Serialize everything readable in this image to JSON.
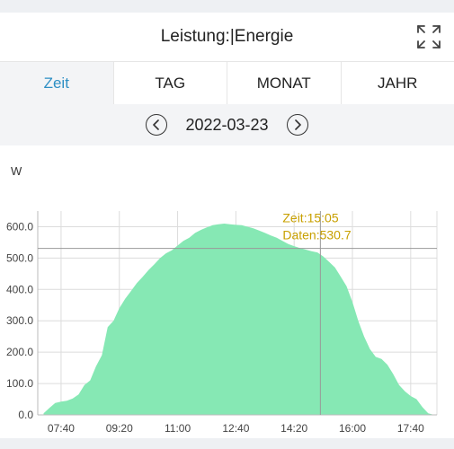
{
  "header": {
    "title": "Leistung:|Energie",
    "expand_icon": "expand-icon"
  },
  "tabs": [
    {
      "label": "Zeit",
      "active": true
    },
    {
      "label": "TAG",
      "active": false
    },
    {
      "label": "MONAT",
      "active": false
    },
    {
      "label": "JAHR",
      "active": false
    }
  ],
  "datebar": {
    "date": "2022-03-23",
    "prev_icon": "chevron-left-icon",
    "next_icon": "chevron-right-icon"
  },
  "colors": {
    "accent": "#2e8fc4",
    "area": "#86e8b4",
    "tooltip": "#c8a000"
  },
  "chart_data": {
    "type": "area",
    "unit_label": "W",
    "ylim": [
      0,
      650
    ],
    "yticks": [
      "0.0",
      "100.0",
      "200.0",
      "300.0",
      "400.0",
      "500.0",
      "600.0"
    ],
    "ytick_values": [
      0,
      100,
      200,
      300,
      400,
      500,
      600
    ],
    "xlim": [
      "07:00",
      "18:25"
    ],
    "xticks": [
      "07:40",
      "09:20",
      "11:00",
      "12:40",
      "14:20",
      "16:00",
      "17:40"
    ],
    "grid": true,
    "tooltip": {
      "time_label": "Zeit:15:05",
      "value_label": "Daten:530.7",
      "x": "15:05",
      "y": 530.7
    },
    "series": [
      {
        "x": [
          "07:10",
          "07:20",
          "07:30",
          "07:40",
          "07:50",
          "08:00",
          "08:10",
          "08:20",
          "08:30",
          "08:40",
          "08:50",
          "09:00",
          "09:10",
          "09:20",
          "09:30",
          "09:40",
          "09:50",
          "10:00",
          "10:10",
          "10:20",
          "10:30",
          "10:40",
          "10:50",
          "11:00",
          "11:10",
          "11:20",
          "11:30",
          "11:40",
          "11:50",
          "12:00",
          "12:10",
          "12:20",
          "12:30",
          "12:40",
          "12:50",
          "13:00",
          "13:10",
          "13:20",
          "13:30",
          "13:40",
          "13:50",
          "14:00",
          "14:10",
          "14:20",
          "14:30",
          "14:40",
          "14:50",
          "15:00",
          "15:10",
          "15:20",
          "15:30",
          "15:40",
          "15:50",
          "16:00",
          "16:10",
          "16:20",
          "16:30",
          "16:40",
          "16:50",
          "17:00",
          "17:10",
          "17:20",
          "17:30",
          "17:40",
          "17:50",
          "18:00",
          "18:10",
          "18:20"
        ],
        "y": [
          5,
          22,
          38,
          42,
          45,
          52,
          65,
          95,
          110,
          155,
          190,
          280,
          300,
          340,
          370,
          395,
          420,
          440,
          462,
          480,
          500,
          515,
          525,
          540,
          555,
          565,
          580,
          590,
          598,
          605,
          608,
          610,
          608,
          606,
          605,
          600,
          595,
          588,
          580,
          572,
          565,
          555,
          545,
          538,
          532,
          527,
          522,
          518,
          505,
          488,
          470,
          440,
          410,
          360,
          300,
          250,
          210,
          185,
          178,
          160,
          130,
          95,
          75,
          60,
          50,
          25,
          5,
          0
        ]
      }
    ]
  }
}
